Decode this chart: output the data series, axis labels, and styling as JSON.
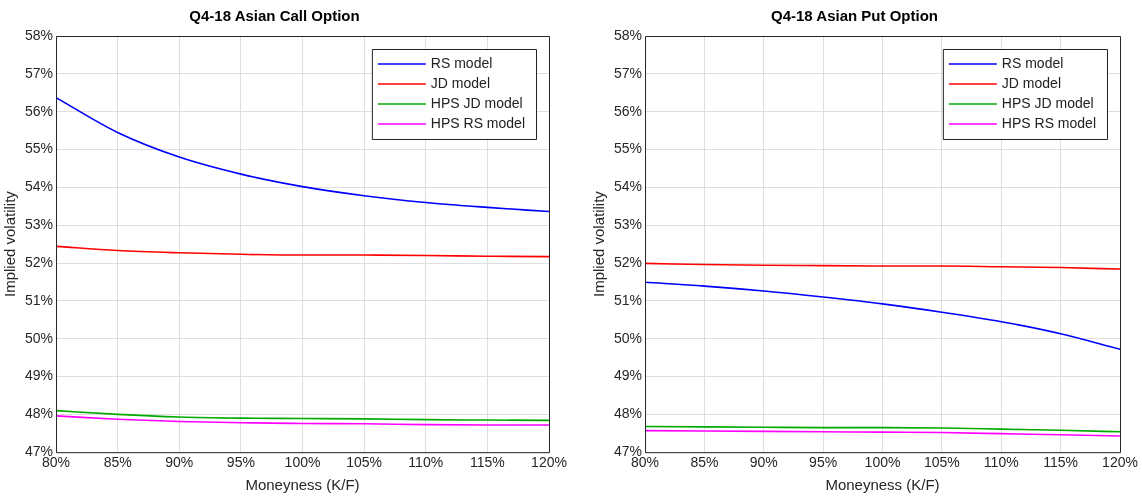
{
  "chart_data": [
    {
      "type": "line",
      "title": "Q4-18 Asian Call Option",
      "xlabel": "Moneyness (K/F)",
      "ylabel": "Implied volatility",
      "x": [
        80,
        85,
        90,
        95,
        100,
        105,
        110,
        115,
        120
      ],
      "series": [
        {
          "name": "RS model",
          "color": "#0000ff",
          "values": [
            56.37,
            55.45,
            54.8,
            54.35,
            54.02,
            53.78,
            53.6,
            53.47,
            53.36
          ]
        },
        {
          "name": "JD model",
          "color": "#ff0000",
          "values": [
            52.44,
            52.33,
            52.27,
            52.23,
            52.21,
            52.21,
            52.2,
            52.18,
            52.17
          ]
        },
        {
          "name": "HPS JD model",
          "color": "#00aa00",
          "values": [
            48.1,
            48.0,
            47.93,
            47.9,
            47.89,
            47.88,
            47.86,
            47.85,
            47.84
          ]
        },
        {
          "name": "HPS RS model",
          "color": "#ff00ff",
          "values": [
            47.96,
            47.87,
            47.81,
            47.78,
            47.76,
            47.75,
            47.73,
            47.72,
            47.72
          ]
        }
      ],
      "xlim": [
        80,
        120
      ],
      "xticks": [
        {
          "value": 80,
          "label": "80%"
        },
        {
          "value": 85,
          "label": "85%"
        },
        {
          "value": 90,
          "label": "90%"
        },
        {
          "value": 95,
          "label": "95%"
        },
        {
          "value": 100,
          "label": "100%"
        },
        {
          "value": 105,
          "label": "105%"
        },
        {
          "value": 110,
          "label": "110%"
        },
        {
          "value": 115,
          "label": "115%"
        },
        {
          "value": 120,
          "label": "120%"
        }
      ],
      "ylim": [
        47,
        58
      ],
      "yticks": [
        {
          "value": 47,
          "label": "47%"
        },
        {
          "value": 48,
          "label": "48%"
        },
        {
          "value": 49,
          "label": "49%"
        },
        {
          "value": 50,
          "label": "50%"
        },
        {
          "value": 51,
          "label": "51%"
        },
        {
          "value": 52,
          "label": "52%"
        },
        {
          "value": 53,
          "label": "53%"
        },
        {
          "value": 54,
          "label": "54%"
        },
        {
          "value": 55,
          "label": "55%"
        },
        {
          "value": 56,
          "label": "56%"
        },
        {
          "value": 57,
          "label": "57%"
        },
        {
          "value": 58,
          "label": "58%"
        }
      ],
      "grid": true,
      "legend": "top right",
      "marker": "none",
      "line_style": "solid"
    },
    {
      "type": "line",
      "title": "Q4-18 Asian Put Option",
      "xlabel": "Moneyness (K/F)",
      "ylabel": "Implied volatility",
      "x": [
        80,
        85,
        90,
        95,
        100,
        105,
        110,
        115,
        120
      ],
      "series": [
        {
          "name": "RS model",
          "color": "#0000ff",
          "values": [
            51.49,
            51.39,
            51.26,
            51.1,
            50.92,
            50.7,
            50.45,
            50.13,
            49.72
          ]
        },
        {
          "name": "JD model",
          "color": "#ff0000",
          "values": [
            51.99,
            51.96,
            51.94,
            51.93,
            51.92,
            51.92,
            51.9,
            51.88,
            51.84
          ]
        },
        {
          "name": "HPS JD model",
          "color": "#00aa00",
          "values": [
            47.68,
            47.67,
            47.66,
            47.65,
            47.65,
            47.64,
            47.61,
            47.58,
            47.54
          ]
        },
        {
          "name": "HPS RS model",
          "color": "#ff00ff",
          "values": [
            47.57,
            47.56,
            47.55,
            47.54,
            47.53,
            47.52,
            47.49,
            47.46,
            47.43
          ]
        }
      ],
      "xlim": [
        80,
        120
      ],
      "xticks": [
        {
          "value": 80,
          "label": "80%"
        },
        {
          "value": 85,
          "label": "85%"
        },
        {
          "value": 90,
          "label": "90%"
        },
        {
          "value": 95,
          "label": "95%"
        },
        {
          "value": 100,
          "label": "100%"
        },
        {
          "value": 105,
          "label": "105%"
        },
        {
          "value": 110,
          "label": "110%"
        },
        {
          "value": 115,
          "label": "115%"
        },
        {
          "value": 120,
          "label": "120%"
        }
      ],
      "ylim": [
        47,
        58
      ],
      "yticks": [
        {
          "value": 47,
          "label": "47%"
        },
        {
          "value": 48,
          "label": "48%"
        },
        {
          "value": 49,
          "label": "49%"
        },
        {
          "value": 50,
          "label": "50%"
        },
        {
          "value": 51,
          "label": "51%"
        },
        {
          "value": 52,
          "label": "52%"
        },
        {
          "value": 53,
          "label": "53%"
        },
        {
          "value": 54,
          "label": "54%"
        },
        {
          "value": 55,
          "label": "55%"
        },
        {
          "value": 56,
          "label": "56%"
        },
        {
          "value": 57,
          "label": "57%"
        },
        {
          "value": 58,
          "label": "58%"
        }
      ],
      "grid": true,
      "legend": "top right",
      "marker": "none",
      "line_style": "solid"
    }
  ]
}
